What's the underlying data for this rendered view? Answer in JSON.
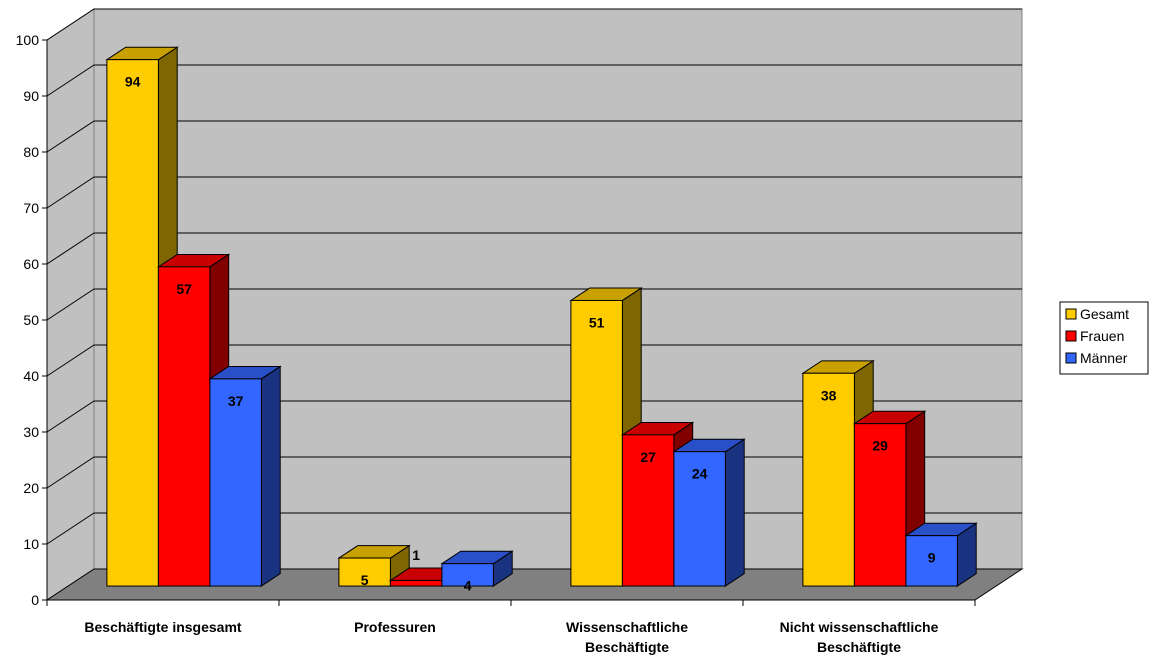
{
  "chart_data": {
    "type": "bar",
    "title": "",
    "xlabel": "",
    "ylabel": "",
    "ylim": [
      0,
      100
    ],
    "yticks": [
      0,
      10,
      20,
      30,
      40,
      50,
      60,
      70,
      80,
      90,
      100
    ],
    "grid": true,
    "legend_position": "right",
    "categories": [
      [
        "Beschäftigte insgesamt"
      ],
      [
        "Professuren"
      ],
      [
        "Wissenschaftliche",
        "Beschäftigte"
      ],
      [
        "Nicht wissenschaftliche",
        "Beschäftigte"
      ]
    ],
    "series": [
      {
        "name": "Gesamt",
        "values": [
          94,
          5,
          51,
          38
        ],
        "color": "#ffcc00",
        "top_color": "#c8a000",
        "side_color": "#7f6600"
      },
      {
        "name": "Frauen",
        "values": [
          57,
          1,
          27,
          29
        ],
        "color": "#ff0000",
        "top_color": "#c80000",
        "side_color": "#800000"
      },
      {
        "name": "Männer",
        "values": [
          37,
          4,
          24,
          9
        ],
        "color": "#3366ff",
        "top_color": "#2a50c8",
        "side_color": "#1a3380"
      }
    ],
    "wall_color": "#c0c0c0",
    "floor_color": "#808080"
  }
}
